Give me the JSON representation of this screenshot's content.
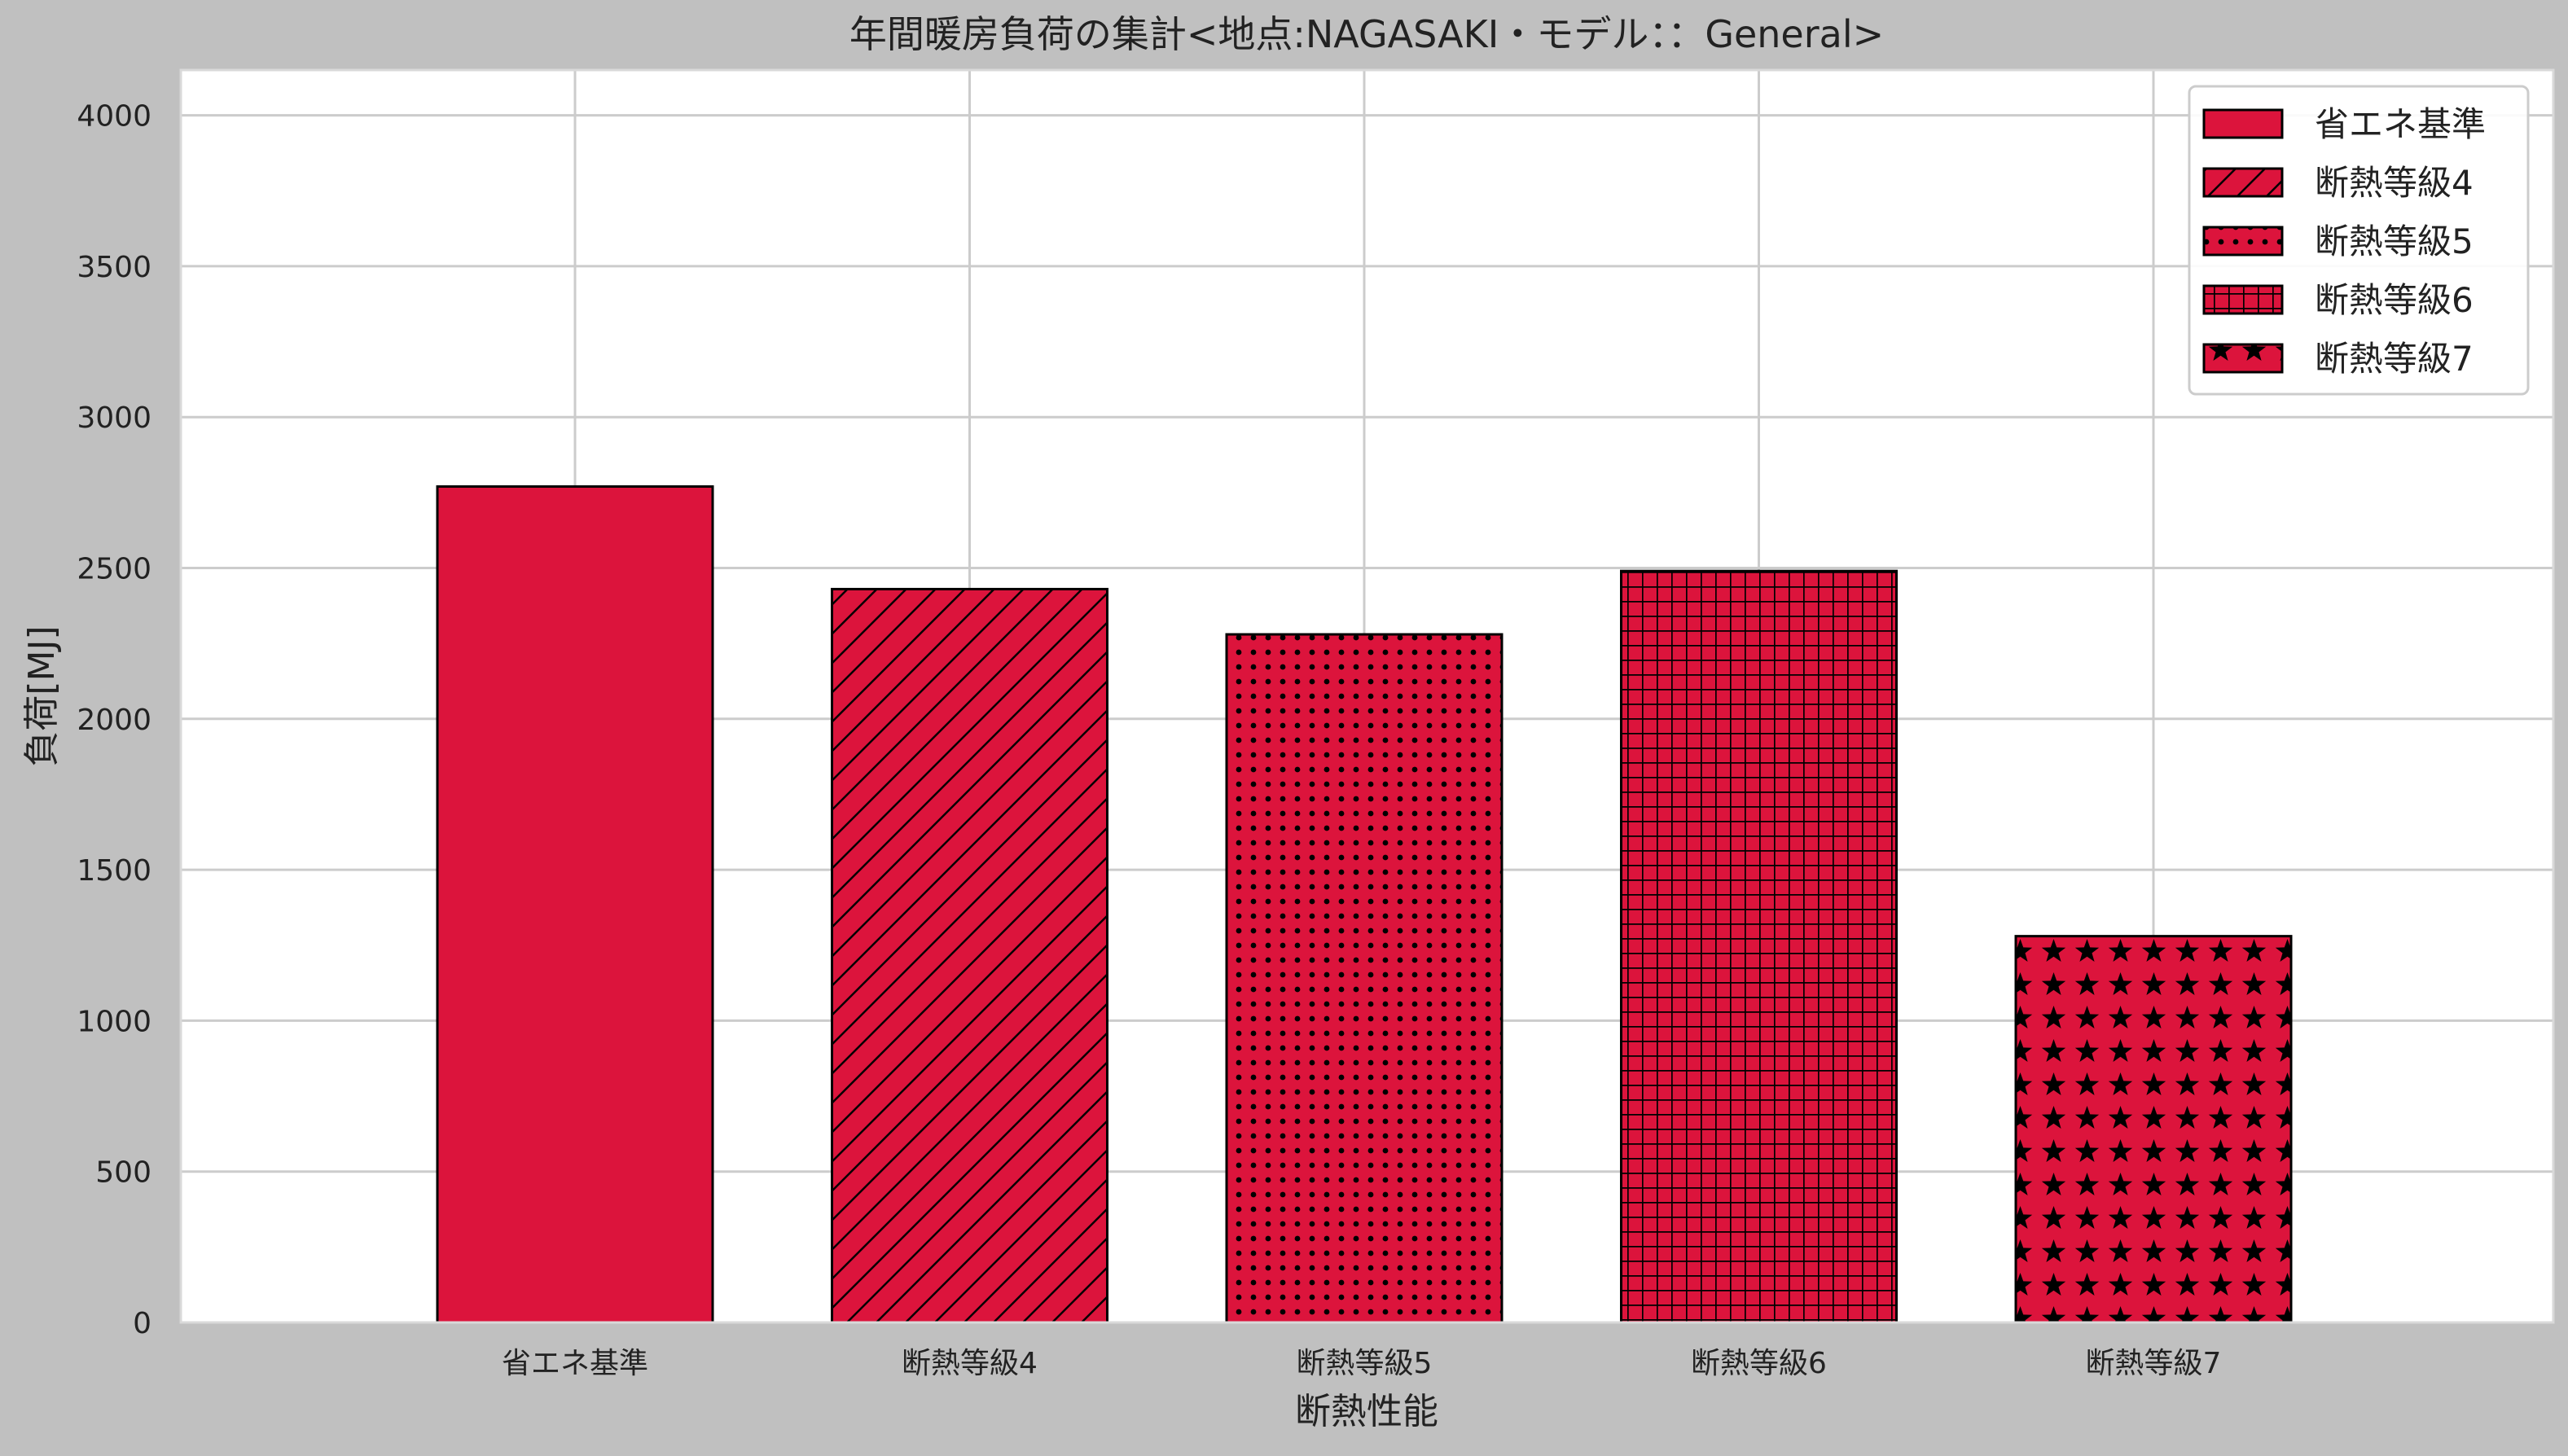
{
  "chart_data": {
    "type": "bar",
    "title": "年間暖房負荷の集計<地点:NAGASAKI・モデル：：General>",
    "xlabel": "断熱性能",
    "ylabel": "負荷[MJ]",
    "categories": [
      "省エネ基準",
      "断熱等級4",
      "断熱等級5",
      "断熱等級6",
      "断熱等級7"
    ],
    "values": [
      2770,
      2430,
      2280,
      2490,
      1280
    ],
    "patterns": [
      "solid",
      "diagonal",
      "dots",
      "grid",
      "stars"
    ],
    "ylim": [
      0,
      4150
    ],
    "yticks": [
      0,
      500,
      1000,
      1500,
      2000,
      2500,
      3000,
      3500,
      4000
    ],
    "grid": true,
    "legend": {
      "position": "top-right",
      "entries": [
        "省エネ基準",
        "断熱等級4",
        "断熱等級5",
        "断熱等級6",
        "断熱等級7"
      ]
    },
    "colors": {
      "bar": "#dc143c",
      "edge": "#000000",
      "background": "#c0c0c0",
      "plot": "#ffffff",
      "grid": "#cccccc"
    }
  }
}
